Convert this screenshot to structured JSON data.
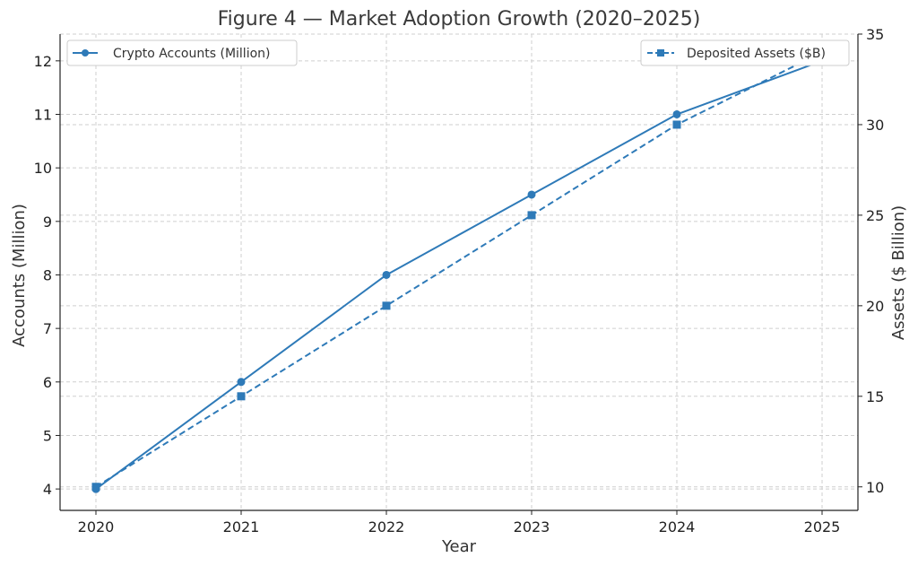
{
  "chart_data": {
    "type": "line",
    "title": "Figure 4 — Market Adoption Growth (2020–2025)",
    "xlabel": "Year",
    "x": [
      2020,
      2021,
      2022,
      2023,
      2024,
      2025
    ],
    "x_tick_labels": [
      "2020",
      "2021",
      "2022",
      "2023",
      "2024",
      "2025"
    ],
    "y_left": {
      "label": "Accounts (Million)",
      "ylim": [
        3.6,
        12.5
      ],
      "ticks": [
        4,
        5,
        6,
        7,
        8,
        9,
        10,
        11,
        12
      ],
      "tick_labels": [
        "4",
        "5",
        "6",
        "7",
        "8",
        "9",
        "10",
        "11",
        "12"
      ]
    },
    "y_right": {
      "label": "Assets ($ Billion)",
      "ylim": [
        8.7,
        35.0
      ],
      "ticks": [
        10,
        15,
        20,
        25,
        30,
        35
      ],
      "tick_labels": [
        "10",
        "15",
        "20",
        "25",
        "30",
        "35"
      ]
    },
    "series": [
      {
        "name": "Crypto Accounts (Million)",
        "axis": "left",
        "marker": "circle",
        "linestyle": "solid",
        "color": "#2e7ab8",
        "values": [
          4,
          6,
          8,
          9.5,
          11,
          12
        ]
      },
      {
        "name": "Deposited Assets ($B)",
        "axis": "right",
        "marker": "square",
        "linestyle": "dashed",
        "color": "#2e7ab8",
        "values": [
          10,
          15,
          20,
          25,
          30,
          34
        ]
      }
    ],
    "grid": true,
    "legend_left_placement": "upper-left",
    "legend_right_placement": "upper-right"
  }
}
